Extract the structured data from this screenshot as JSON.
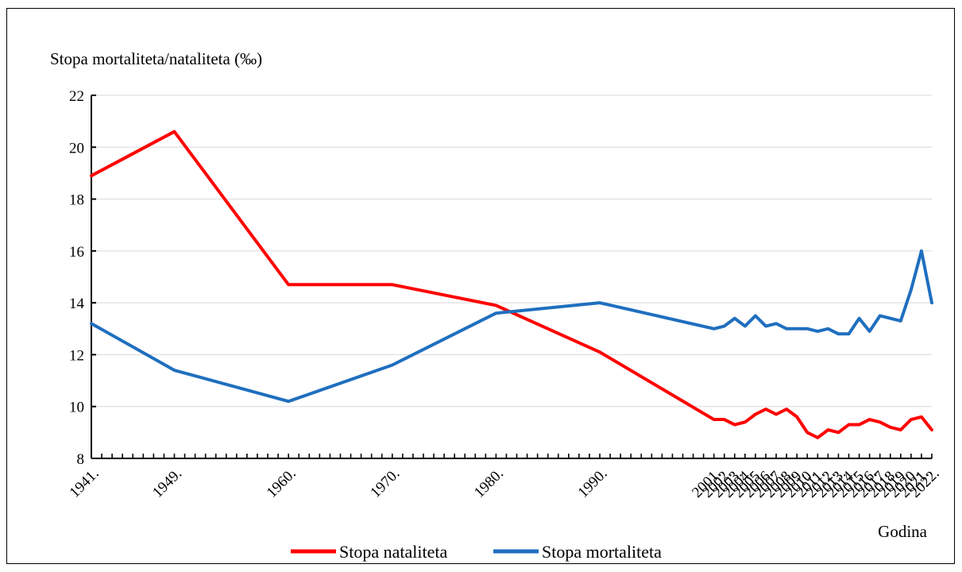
{
  "chart_data": {
    "type": "line",
    "ylabel": "Stopa mortaliteta/nataliteta (‰)",
    "xlabel": "Godina",
    "ylim": [
      8,
      22
    ],
    "yticks": [
      8,
      10,
      12,
      14,
      16,
      18,
      20,
      22
    ],
    "grid": true,
    "legend_position": "bottom",
    "x": [
      "1941.",
      "1949.",
      "1960.",
      "1970.",
      "1980.",
      "1990.",
      "2001.",
      "2002.",
      "2003.",
      "2004.",
      "2005.",
      "2006.",
      "2007.",
      "2008.",
      "2009.",
      "2010.",
      "2011.",
      "2012.",
      "2013.",
      "2014.",
      "2015.",
      "2016.",
      "2017.",
      "2018.",
      "2019.",
      "2020.",
      "2021.",
      "2022."
    ],
    "x_years": [
      1941,
      1949,
      1960,
      1970,
      1980,
      1990,
      2001,
      2002,
      2003,
      2004,
      2005,
      2006,
      2007,
      2008,
      2009,
      2010,
      2011,
      2012,
      2013,
      2014,
      2015,
      2016,
      2017,
      2018,
      2019,
      2020,
      2021,
      2022
    ],
    "series": [
      {
        "name": "Stopa nataliteta",
        "color": "#ff0000",
        "values": [
          18.9,
          20.6,
          14.7,
          14.7,
          13.9,
          12.1,
          9.5,
          9.5,
          9.3,
          9.4,
          9.7,
          9.9,
          9.7,
          9.9,
          9.6,
          9.0,
          8.8,
          9.1,
          9.0,
          9.3,
          9.3,
          9.5,
          9.4,
          9.2,
          9.1,
          9.5,
          9.6,
          9.1
        ]
      },
      {
        "name": "Stopa mortaliteta",
        "color": "#1f6fbf",
        "values": [
          13.2,
          11.4,
          10.2,
          11.6,
          13.6,
          14.0,
          13.0,
          13.1,
          13.4,
          13.1,
          13.5,
          13.1,
          13.2,
          13.0,
          13.0,
          13.0,
          12.9,
          13.0,
          12.8,
          12.8,
          13.4,
          12.9,
          13.5,
          13.4,
          13.3,
          14.5,
          16.0,
          14.0
        ]
      }
    ]
  }
}
